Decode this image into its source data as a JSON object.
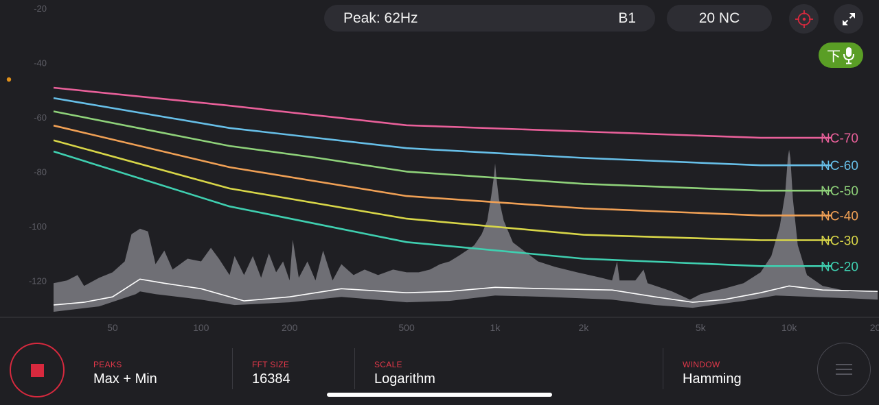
{
  "header": {
    "peak_label": "Peak: 62Hz",
    "note": "B1",
    "nc_rating": "20 NC"
  },
  "icons": {
    "crosshair": "crosshair-icon",
    "expand": "expand-icon",
    "mic": "microphone-icon"
  },
  "mic_button": {
    "char": "下"
  },
  "colors": {
    "background": "#1f1f23",
    "accent_red": "#d8293e",
    "mic_green": "#5a9e25",
    "indicator_orange": "#e0901a"
  },
  "settings": {
    "peaks": {
      "label": "PEAKS",
      "value": "Max + Min"
    },
    "fft": {
      "label": "FFT SIZE",
      "value": "16384"
    },
    "scale": {
      "label": "SCALE",
      "value": "Logarithm"
    },
    "window": {
      "label": "WINDOW",
      "value": "Hamming"
    }
  },
  "chart_data": {
    "type": "line",
    "x_scale": "log",
    "xlim": [
      31.5,
      20000
    ],
    "ylim": [
      -133,
      -17
    ],
    "y_ticks": [
      -20,
      -40,
      -60,
      -80,
      -100,
      -120
    ],
    "x_ticks": [
      {
        "v": 50,
        "label": "50"
      },
      {
        "v": 100,
        "label": "100"
      },
      {
        "v": 200,
        "label": "200"
      },
      {
        "v": 500,
        "label": "500"
      },
      {
        "v": 1000,
        "label": "1k"
      },
      {
        "v": 2000,
        "label": "2k"
      },
      {
        "v": 5000,
        "label": "5k"
      },
      {
        "v": 10000,
        "label": "10k"
      },
      {
        "v": 20000,
        "label": "20k"
      }
    ],
    "nc_curves": [
      {
        "name": "NC-70",
        "color": "#e9609a",
        "points": [
          [
            31.5,
            -49.2
          ],
          [
            125,
            -55.8
          ],
          [
            500,
            -63
          ],
          [
            8000,
            -67.6
          ],
          [
            14000,
            -67.6
          ]
        ]
      },
      {
        "name": "NC-60",
        "color": "#67bfe8",
        "points": [
          [
            31.5,
            -53
          ],
          [
            125,
            -64
          ],
          [
            500,
            -71.4
          ],
          [
            2000,
            -75
          ],
          [
            8000,
            -77.7
          ],
          [
            14000,
            -77.7
          ]
        ]
      },
      {
        "name": "NC-50",
        "color": "#8fd27a",
        "points": [
          [
            31.5,
            -57.9
          ],
          [
            125,
            -70.6
          ],
          [
            250,
            -75
          ],
          [
            500,
            -80
          ],
          [
            2000,
            -84.5
          ],
          [
            8000,
            -87
          ],
          [
            14000,
            -87
          ]
        ]
      },
      {
        "name": "NC-40",
        "color": "#f0a055",
        "points": [
          [
            31.5,
            -63.1
          ],
          [
            125,
            -78.4
          ],
          [
            500,
            -89
          ],
          [
            2000,
            -93.5
          ],
          [
            8000,
            -96.1
          ],
          [
            14000,
            -96.1
          ]
        ]
      },
      {
        "name": "NC-30",
        "color": "#d8d648",
        "points": [
          [
            31.5,
            -68.5
          ],
          [
            125,
            -86.2
          ],
          [
            500,
            -97.3
          ],
          [
            2000,
            -103.2
          ],
          [
            8000,
            -105.2
          ],
          [
            14000,
            -105.2
          ]
        ]
      },
      {
        "name": "NC-20",
        "color": "#3fcfb0",
        "points": [
          [
            31.5,
            -72.6
          ],
          [
            125,
            -92.8
          ],
          [
            500,
            -105.9
          ],
          [
            2000,
            -112
          ],
          [
            8000,
            -114.7
          ],
          [
            14000,
            -114.7
          ]
        ]
      }
    ],
    "spectrum_max": [
      [
        31.5,
        -121
      ],
      [
        35,
        -120
      ],
      [
        38,
        -118
      ],
      [
        40,
        -122
      ],
      [
        45,
        -119
      ],
      [
        50,
        -117
      ],
      [
        55,
        -113
      ],
      [
        58,
        -103
      ],
      [
        62,
        -101
      ],
      [
        66,
        -102
      ],
      [
        70,
        -114
      ],
      [
        75,
        -109
      ],
      [
        80,
        -116
      ],
      [
        90,
        -112
      ],
      [
        100,
        -113
      ],
      [
        108,
        -108
      ],
      [
        115,
        -112
      ],
      [
        125,
        -118
      ],
      [
        130,
        -111
      ],
      [
        140,
        -118
      ],
      [
        150,
        -111
      ],
      [
        160,
        -119
      ],
      [
        170,
        -110
      ],
      [
        180,
        -117
      ],
      [
        190,
        -113
      ],
      [
        200,
        -120
      ],
      [
        205,
        -105
      ],
      [
        215,
        -119
      ],
      [
        230,
        -113
      ],
      [
        245,
        -120
      ],
      [
        260,
        -109
      ],
      [
        280,
        -120
      ],
      [
        300,
        -114
      ],
      [
        330,
        -118
      ],
      [
        360,
        -116
      ],
      [
        400,
        -118
      ],
      [
        450,
        -116
      ],
      [
        500,
        -117
      ],
      [
        550,
        -117
      ],
      [
        600,
        -116
      ],
      [
        650,
        -114
      ],
      [
        700,
        -113
      ],
      [
        750,
        -111
      ],
      [
        800,
        -109
      ],
      [
        850,
        -107
      ],
      [
        900,
        -103
      ],
      [
        940,
        -98
      ],
      [
        970,
        -89
      ],
      [
        990,
        -82
      ],
      [
        1000,
        -77
      ],
      [
        1010,
        -82
      ],
      [
        1030,
        -90
      ],
      [
        1070,
        -98
      ],
      [
        1150,
        -106
      ],
      [
        1250,
        -109
      ],
      [
        1400,
        -113
      ],
      [
        1600,
        -115
      ],
      [
        1900,
        -117
      ],
      [
        2300,
        -119
      ],
      [
        2500,
        -120
      ],
      [
        2600,
        -113
      ],
      [
        2650,
        -120
      ],
      [
        3000,
        -120
      ],
      [
        3200,
        -116
      ],
      [
        3300,
        -121
      ],
      [
        4000,
        -124
      ],
      [
        4600,
        -127
      ],
      [
        5000,
        -125
      ],
      [
        6000,
        -123
      ],
      [
        7000,
        -121
      ],
      [
        8000,
        -117
      ],
      [
        8700,
        -111
      ],
      [
        9300,
        -100
      ],
      [
        9700,
        -88
      ],
      [
        9900,
        -75
      ],
      [
        10000,
        -72
      ],
      [
        10100,
        -75
      ],
      [
        10300,
        -90
      ],
      [
        10700,
        -107
      ],
      [
        11500,
        -118
      ],
      [
        13000,
        -122
      ],
      [
        16000,
        -124
      ],
      [
        20000,
        -124
      ]
    ],
    "spectrum_min": [
      [
        31.5,
        -131.5
      ],
      [
        45,
        -129.5
      ],
      [
        60,
        -125
      ],
      [
        62,
        -124
      ],
      [
        70,
        -125
      ],
      [
        100,
        -127
      ],
      [
        130,
        -129
      ],
      [
        200,
        -128
      ],
      [
        300,
        -126
      ],
      [
        500,
        -128
      ],
      [
        700,
        -127.5
      ],
      [
        1000,
        -125.5
      ],
      [
        1500,
        -126
      ],
      [
        2500,
        -127
      ],
      [
        3500,
        -129
      ],
      [
        4700,
        -130
      ],
      [
        5500,
        -129
      ],
      [
        7000,
        -127.5
      ],
      [
        9000,
        -125.5
      ],
      [
        12000,
        -126
      ],
      [
        16000,
        -126.5
      ],
      [
        20000,
        -127
      ]
    ],
    "spectrum_avg": [
      [
        31.5,
        -129
      ],
      [
        40,
        -128
      ],
      [
        50,
        -126
      ],
      [
        62,
        -119.5
      ],
      [
        75,
        -121
      ],
      [
        100,
        -123
      ],
      [
        140,
        -127.5
      ],
      [
        200,
        -126
      ],
      [
        300,
        -123
      ],
      [
        500,
        -124.5
      ],
      [
        700,
        -124
      ],
      [
        1000,
        -122.5
      ],
      [
        1500,
        -123
      ],
      [
        2500,
        -123.5
      ],
      [
        3500,
        -126
      ],
      [
        4700,
        -128
      ],
      [
        6000,
        -127
      ],
      [
        8000,
        -124.5
      ],
      [
        10000,
        -122
      ],
      [
        13000,
        -123.5
      ],
      [
        20000,
        -124
      ]
    ]
  }
}
